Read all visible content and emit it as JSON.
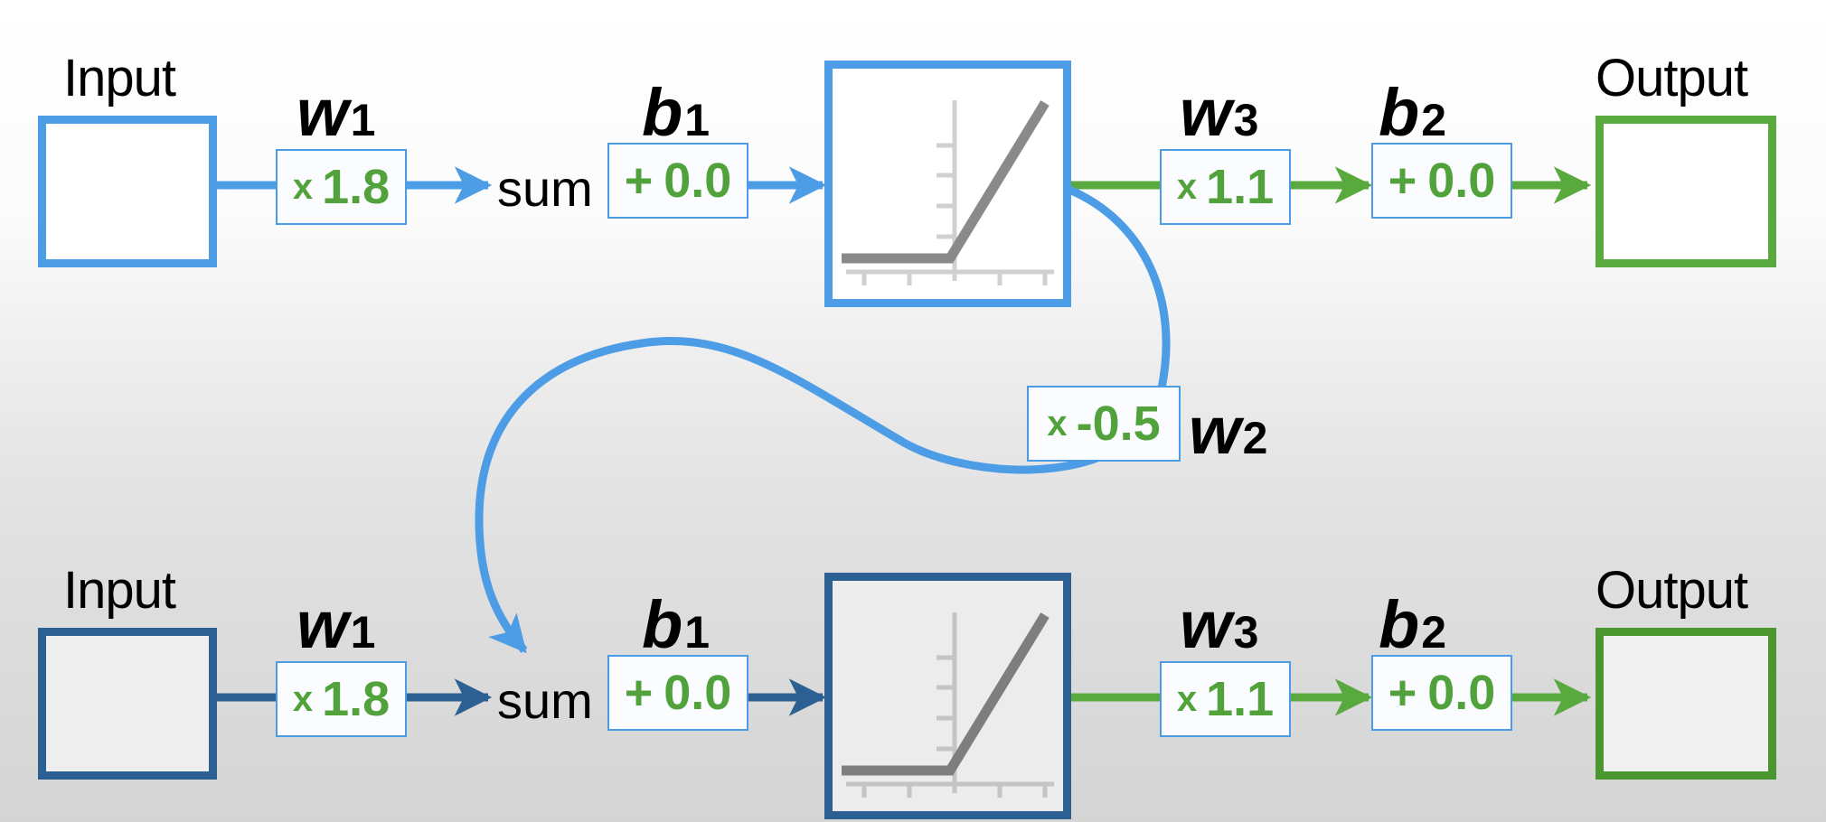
{
  "colors": {
    "blue": "#4c9de6",
    "dark_blue": "#2c5f92",
    "green": "#5aa93e",
    "value_text": "#52a23c",
    "relu_gray": "#8a8a8a"
  },
  "top": {
    "input_label": "Input",
    "output_label": "Output",
    "sum_label": "sum",
    "w1": {
      "symbol": "w",
      "sub": "1",
      "op": "x",
      "value": "1.8"
    },
    "b1": {
      "symbol": "b",
      "sub": "1",
      "op": "+",
      "value": "0.0"
    },
    "w3": {
      "symbol": "w",
      "sub": "3",
      "op": "x",
      "value": "1.1"
    },
    "b2": {
      "symbol": "b",
      "sub": "2",
      "op": "+",
      "value": "0.0"
    },
    "activation_icon": "relu-graph-icon"
  },
  "bottom": {
    "input_label": "Input",
    "output_label": "Output",
    "sum_label": "sum",
    "w1": {
      "symbol": "w",
      "sub": "1",
      "op": "x",
      "value": "1.8"
    },
    "b1": {
      "symbol": "b",
      "sub": "1",
      "op": "+",
      "value": "0.0"
    },
    "w3": {
      "symbol": "w",
      "sub": "3",
      "op": "x",
      "value": "1.1"
    },
    "b2": {
      "symbol": "b",
      "sub": "2",
      "op": "+",
      "value": "0.0"
    },
    "activation_icon": "relu-graph-icon"
  },
  "recurrent": {
    "w2": {
      "symbol": "w",
      "sub": "2",
      "op": "x",
      "value": "-0.5"
    }
  }
}
